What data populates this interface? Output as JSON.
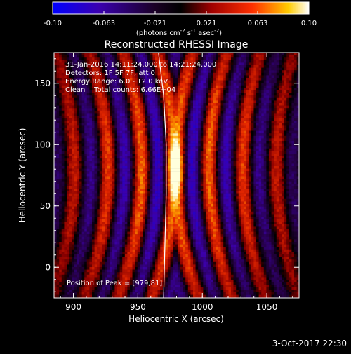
{
  "chart_data": {
    "type": "heatmap",
    "title": "Reconstructed RHESSI Image",
    "xlabel": "Heliocentric X (arcsec)",
    "ylabel": "Heliocentric Y (arcsec)",
    "xlim": [
      885,
      1075
    ],
    "ylim": [
      -25,
      175
    ],
    "xticks": [
      900,
      950,
      1000,
      1050
    ],
    "yticks": [
      0,
      50,
      100,
      150
    ],
    "peak": [
      979,
      81
    ],
    "colorbar": {
      "min": -0.1,
      "max": 0.1,
      "ticks": [
        "-0.10",
        "-0.063",
        "-0.021",
        "0.021",
        "0.063",
        "0.10"
      ],
      "unit_main": "(photons cm",
      "unit_exp1": "-2",
      "unit_mid1": " s",
      "unit_exp2": "-1",
      "unit_mid2": " asec",
      "unit_exp3": "-2",
      "unit_end": ")"
    },
    "annotations": [
      "31-Jan-2016 14:11:24.000 to 14:21:24.000",
      "Detectors: 1F 5F 7F, att 0",
      "Energy Range: 6.0 - 12.0 keV",
      "Clean    Total counts: 6.66E+04"
    ],
    "peak_label": "Position of Peak = [979,81]",
    "limb_curve": [
      [
        966,
        175
      ],
      [
        970,
        140
      ],
      [
        972,
        100
      ],
      [
        972,
        60
      ],
      [
        971,
        20
      ],
      [
        970,
        -25
      ]
    ]
  },
  "footer": {
    "date": "3-Oct-2017 22:30"
  }
}
